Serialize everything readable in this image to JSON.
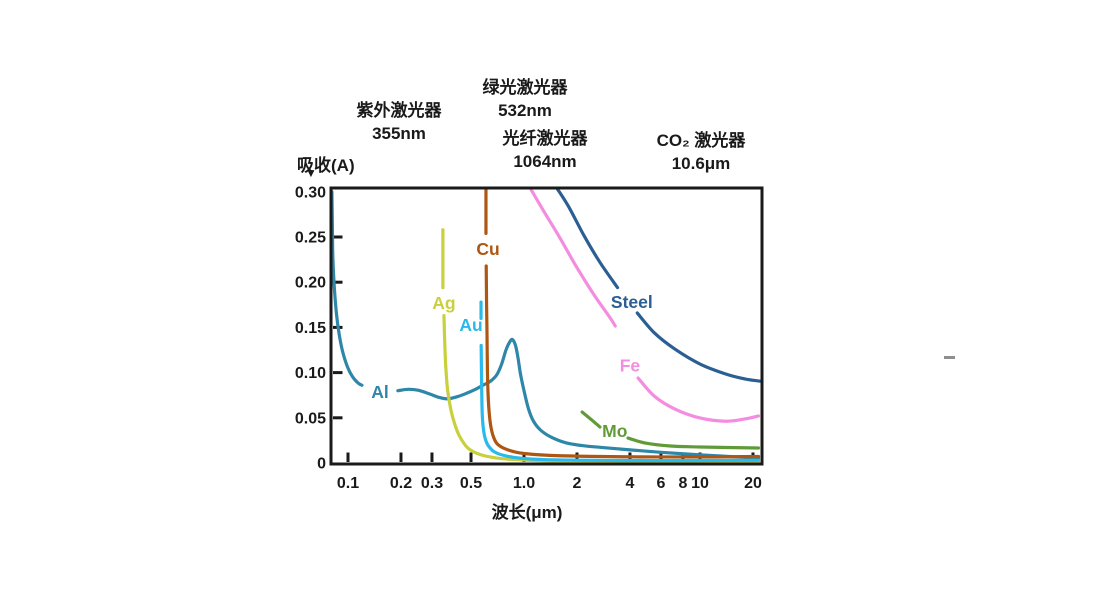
{
  "canvas": {
    "background": "#ffffff",
    "text_color": "#1a1a1a",
    "axis_color": "#1a1a1a"
  },
  "annotations": [
    {
      "id": "uv-laser",
      "line1": "紫外激光器",
      "line2": "355nm"
    },
    {
      "id": "green-laser",
      "line1": "绿光激光器",
      "line2": "532nm"
    },
    {
      "id": "fiber-laser",
      "line1": "光纤激光器",
      "line2": "1064nm"
    },
    {
      "id": "co2-laser",
      "line1": "CO₂ 激光器",
      "line2": "10.6μm"
    }
  ],
  "axes": {
    "y_label": "吸收(A)",
    "y_arrow_glyph": "▼",
    "x_label": "波长(μm)"
  },
  "chart_data": {
    "type": "line",
    "title": "",
    "xlabel": "波长(μm)",
    "ylabel": "吸收(A)",
    "x_scale": "log",
    "grid": false,
    "legend_position": "inline-labels",
    "xlim": [
      0.08,
      22.5
    ],
    "ylim": [
      0,
      0.304
    ],
    "x_ticks": [
      {
        "v": 0.1,
        "label": "0.1"
      },
      {
        "v": 0.2,
        "label": "0.2"
      },
      {
        "v": 0.3,
        "label": "0.3"
      },
      {
        "v": 0.5,
        "label": "0.5"
      },
      {
        "v": 1.0,
        "label": "1.0"
      },
      {
        "v": 2,
        "label": "2"
      },
      {
        "v": 4,
        "label": "4"
      },
      {
        "v": 6,
        "label": "6"
      },
      {
        "v": 8,
        "label": "8"
      },
      {
        "v": 10,
        "label": "10"
      },
      {
        "v": 20,
        "label": "20"
      }
    ],
    "y_ticks": [
      {
        "v": 0,
        "label": "0"
      },
      {
        "v": 0.05,
        "label": "0.05"
      },
      {
        "v": 0.1,
        "label": "0.10"
      },
      {
        "v": 0.15,
        "label": "0.15"
      },
      {
        "v": 0.2,
        "label": "0.20"
      },
      {
        "v": 0.25,
        "label": "0.25"
      },
      {
        "v": 0.3,
        "label": "0.30"
      }
    ],
    "series": [
      {
        "name": "Al",
        "color": "#2e86a8",
        "label": {
          "x": 0.152,
          "y": 0.0785
        },
        "segments": [
          [
            [
              0.081,
              0.3
            ],
            [
              0.0815,
              0.262
            ],
            [
              0.082,
              0.228
            ],
            [
              0.0835,
              0.196
            ],
            [
              0.086,
              0.165
            ],
            [
              0.089,
              0.143
            ],
            [
              0.093,
              0.124
            ],
            [
              0.099,
              0.107
            ],
            [
              0.106,
              0.0955
            ],
            [
              0.114,
              0.0885
            ],
            [
              0.12,
              0.086
            ]
          ],
          [
            [
              0.192,
              0.08
            ],
            [
              0.22,
              0.0815
            ],
            [
              0.25,
              0.0805
            ],
            [
              0.29,
              0.0765
            ],
            [
              0.33,
              0.0725
            ],
            [
              0.37,
              0.071
            ],
            [
              0.42,
              0.0735
            ],
            [
              0.47,
              0.077
            ],
            [
              0.53,
              0.0815
            ],
            [
              0.59,
              0.0865
            ],
            [
              0.64,
              0.09
            ],
            [
              0.7,
              0.0975
            ],
            [
              0.745,
              0.109
            ],
            [
              0.79,
              0.125
            ],
            [
              0.83,
              0.134
            ],
            [
              0.86,
              0.1365
            ],
            [
              0.895,
              0.13
            ],
            [
              0.925,
              0.116
            ],
            [
              0.955,
              0.0985
            ],
            [
              1.0,
              0.08
            ],
            [
              1.06,
              0.06
            ],
            [
              1.13,
              0.0465
            ],
            [
              1.24,
              0.0365
            ],
            [
              1.42,
              0.0288
            ],
            [
              1.72,
              0.0225
            ],
            [
              2.2,
              0.019
            ],
            [
              3.5,
              0.0155
            ],
            [
              6.0,
              0.0118
            ],
            [
              10,
              0.009
            ],
            [
              16,
              0.0068
            ],
            [
              21.5,
              0.0055
            ]
          ]
        ]
      },
      {
        "name": "Ag",
        "color": "#c9d03c",
        "label": {
          "x": 0.351,
          "y": 0.177
        },
        "segments": [
          [
            [
              0.346,
              0.258
            ],
            [
              0.346,
              0.194
            ]
          ],
          [
            [
              0.351,
              0.163
            ],
            [
              0.354,
              0.137
            ],
            [
              0.359,
              0.108
            ],
            [
              0.368,
              0.081
            ],
            [
              0.384,
              0.059
            ],
            [
              0.405,
              0.0425
            ],
            [
              0.432,
              0.029
            ],
            [
              0.48,
              0.0165
            ],
            [
              0.56,
              0.0095
            ],
            [
              0.7,
              0.0055
            ],
            [
              0.95,
              0.0035
            ],
            [
              1.6,
              0.002
            ],
            [
              4.6,
              0.0012
            ],
            [
              21.5,
              0.0008
            ]
          ]
        ]
      },
      {
        "name": "Au",
        "color": "#29b9ea",
        "label": {
          "x": 0.5,
          "y": 0.1525
        },
        "segments": [
          [
            [
              0.57,
              0.178
            ],
            [
              0.57,
              0.16
            ]
          ],
          [
            [
              0.571,
              0.13
            ],
            [
              0.574,
              0.092
            ],
            [
              0.578,
              0.0585
            ],
            [
              0.585,
              0.0415
            ],
            [
              0.6,
              0.028
            ],
            [
              0.63,
              0.0185
            ],
            [
              0.7,
              0.011
            ],
            [
              0.89,
              0.006
            ],
            [
              1.3,
              0.0038
            ],
            [
              3.5,
              0.0028
            ],
            [
              10,
              0.0028
            ],
            [
              21.5,
              0.003
            ]
          ]
        ]
      },
      {
        "name": "Cu",
        "color": "#ae5712",
        "label": {
          "x": 0.625,
          "y": 0.2365
        },
        "segments": [
          [
            [
              0.608,
              0.302
            ],
            [
              0.608,
              0.254
            ]
          ],
          [
            [
              0.61,
              0.218
            ],
            [
              0.613,
              0.175
            ],
            [
              0.616,
              0.147
            ],
            [
              0.62,
              0.1
            ],
            [
              0.626,
              0.073
            ],
            [
              0.636,
              0.053
            ],
            [
              0.65,
              0.039
            ],
            [
              0.672,
              0.0285
            ],
            [
              0.71,
              0.0205
            ],
            [
              0.81,
              0.0145
            ],
            [
              1.0,
              0.0105
            ],
            [
              1.6,
              0.008
            ],
            [
              4.6,
              0.0068
            ],
            [
              12,
              0.0068
            ],
            [
              21.5,
              0.0072
            ]
          ]
        ]
      },
      {
        "name": "Steel",
        "color": "#2b5f93",
        "label": {
          "x": 4.1,
          "y": 0.178
        },
        "segments": [
          [
            [
              1.55,
              0.303
            ],
            [
              1.8,
              0.283
            ],
            [
              2.2,
              0.251
            ],
            [
              2.7,
              0.222
            ],
            [
              3.4,
              0.194
            ]
          ],
          [
            [
              4.4,
              0.166
            ],
            [
              5.5,
              0.144
            ],
            [
              7.2,
              0.126
            ],
            [
              10.0,
              0.1095
            ],
            [
              14.0,
              0.0985
            ],
            [
              18.0,
              0.093
            ],
            [
              22.0,
              0.0905
            ]
          ]
        ]
      },
      {
        "name": "Fe",
        "color": "#f48ce0",
        "label": {
          "x": 4.0,
          "y": 0.108
        },
        "segments": [
          [
            [
              1.1,
              0.302
            ],
            [
              1.3,
              0.278
            ],
            [
              1.6,
              0.249
            ],
            [
              2.0,
              0.216
            ],
            [
              2.5,
              0.186
            ],
            [
              3.1,
              0.16
            ],
            [
              3.3,
              0.1515
            ]
          ],
          [
            [
              4.45,
              0.094
            ],
            [
              5.5,
              0.074
            ],
            [
              7.2,
              0.0597
            ],
            [
              10.0,
              0.0498
            ],
            [
              14.0,
              0.0462
            ],
            [
              18.0,
              0.0487
            ],
            [
              21.5,
              0.052
            ]
          ]
        ]
      },
      {
        "name": "Mo",
        "color": "#619b38",
        "label": {
          "x": 3.28,
          "y": 0.0355
        },
        "segments": [
          [
            [
              2.14,
              0.0564
            ],
            [
              2.43,
              0.0475
            ],
            [
              2.7,
              0.0398
            ]
          ],
          [
            [
              3.9,
              0.0276
            ],
            [
              4.9,
              0.0221
            ],
            [
              6.8,
              0.0188
            ],
            [
              10.0,
              0.0177
            ],
            [
              21.5,
              0.0166
            ]
          ]
        ]
      }
    ]
  }
}
